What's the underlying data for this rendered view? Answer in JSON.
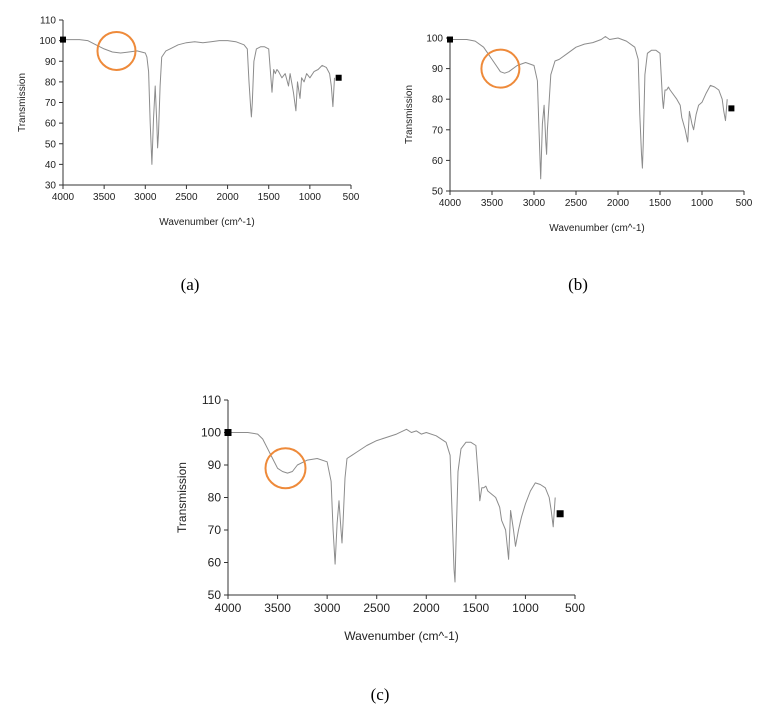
{
  "figure": {
    "panel_labels": [
      "(a)",
      "(b)",
      "(c)"
    ]
  },
  "colors": {
    "spectrum_line": "#8c8c8c",
    "axis": "#333333",
    "highlight_circle": "#ee8a3a",
    "marker": "#000000"
  },
  "chart_data": [
    {
      "type": "line",
      "panel": "(a)",
      "xlabel": "Wavenumber (cm^-1)",
      "ylabel": "Transmission",
      "xlim": [
        4000,
        500
      ],
      "x_reversed": true,
      "ylim": [
        30,
        110
      ],
      "xticks": [
        4000,
        3500,
        3000,
        2500,
        2000,
        1500,
        1000,
        500
      ],
      "yticks": [
        30,
        40,
        50,
        60,
        70,
        80,
        90,
        100,
        110
      ],
      "grid": false,
      "markers": [
        {
          "x": 4000,
          "y": 100.5
        },
        {
          "x": 650,
          "y": 82
        }
      ],
      "highlight": {
        "x": 3350,
        "y": 95
      },
      "series": [
        {
          "x": [
            4000,
            3800,
            3700,
            3600,
            3500,
            3400,
            3300,
            3200,
            3100,
            3000,
            2980,
            2960,
            2940,
            2920,
            2900,
            2880,
            2860,
            2850,
            2840,
            2820,
            2800,
            2750,
            2700,
            2600,
            2500,
            2400,
            2300,
            2200,
            2100,
            2000,
            1900,
            1800,
            1760,
            1740,
            1720,
            1710,
            1700,
            1680,
            1650,
            1600,
            1550,
            1500,
            1470,
            1460,
            1440,
            1420,
            1400,
            1380,
            1340,
            1300,
            1260,
            1240,
            1200,
            1170,
            1150,
            1120,
            1100,
            1070,
            1040,
            1000,
            950,
            900,
            850,
            800,
            760,
            740,
            720,
            700
          ],
          "y": [
            100.5,
            100.5,
            100,
            98,
            96,
            94.5,
            94,
            94.5,
            95,
            94,
            92,
            85,
            60,
            40,
            62,
            78,
            60,
            48,
            55,
            78,
            92,
            95,
            96,
            98,
            99,
            99.5,
            99,
            99.5,
            100,
            100,
            99.5,
            98,
            96,
            80,
            68,
            63,
            70,
            90,
            96,
            97,
            97,
            96,
            80,
            75,
            86,
            84,
            86,
            85,
            82,
            84,
            78,
            84,
            75,
            66,
            80,
            72,
            82,
            80,
            84,
            82,
            85,
            86,
            88,
            87,
            84,
            78,
            68,
            82
          ]
        }
      ]
    },
    {
      "type": "line",
      "panel": "(b)",
      "xlabel": "Wavenumber (cm^-1)",
      "ylabel": "Transmission",
      "xlim": [
        4000,
        500
      ],
      "x_reversed": true,
      "ylim": [
        50,
        100
      ],
      "xticks": [
        4000,
        3500,
        3000,
        2500,
        2000,
        1500,
        1000,
        500
      ],
      "yticks": [
        50,
        60,
        70,
        80,
        90,
        100
      ],
      "grid": false,
      "markers": [
        {
          "x": 4000,
          "y": 99.5
        },
        {
          "x": 650,
          "y": 77
        }
      ],
      "highlight": {
        "x": 3400,
        "y": 90
      },
      "series": [
        {
          "x": [
            4000,
            3800,
            3700,
            3600,
            3500,
            3450,
            3400,
            3350,
            3300,
            3200,
            3100,
            3000,
            2960,
            2940,
            2920,
            2900,
            2880,
            2860,
            2850,
            2840,
            2800,
            2750,
            2700,
            2600,
            2500,
            2400,
            2300,
            2200,
            2150,
            2100,
            2000,
            1900,
            1800,
            1760,
            1740,
            1720,
            1710,
            1700,
            1680,
            1650,
            1600,
            1550,
            1500,
            1470,
            1460,
            1440,
            1420,
            1400,
            1380,
            1300,
            1260,
            1240,
            1200,
            1170,
            1150,
            1120,
            1100,
            1070,
            1040,
            1000,
            950,
            900,
            850,
            800,
            760,
            740,
            720,
            700
          ],
          "y": [
            99.5,
            99.5,
            99,
            97,
            93,
            91,
            89,
            88.5,
            89,
            91,
            92,
            91,
            86,
            70,
            54,
            72,
            78,
            66,
            62,
            70,
            88,
            92.5,
            93,
            95,
            97,
            98,
            98.5,
            99.5,
            100.5,
            99.5,
            100,
            99,
            97,
            93,
            75,
            62,
            57.5,
            65,
            88,
            95,
            96,
            96,
            95,
            80,
            77,
            83,
            83,
            84,
            83,
            80,
            78,
            74,
            70,
            66,
            76,
            72,
            70,
            75,
            78,
            79,
            82,
            84.5,
            84,
            83,
            80,
            76,
            73,
            80
          ]
        }
      ]
    },
    {
      "type": "line",
      "panel": "(c)",
      "xlabel": "Wavenumber (cm^-1)",
      "ylabel": "Transmission",
      "xlim": [
        4000,
        500
      ],
      "x_reversed": true,
      "ylim": [
        50,
        110
      ],
      "xticks": [
        4000,
        3500,
        3000,
        2500,
        2000,
        1500,
        1000,
        500
      ],
      "yticks": [
        50,
        60,
        70,
        80,
        90,
        100,
        110
      ],
      "grid": false,
      "markers": [
        {
          "x": 4000,
          "y": 100
        },
        {
          "x": 650,
          "y": 75
        }
      ],
      "highlight": {
        "x": 3420,
        "y": 89
      },
      "series": [
        {
          "x": [
            4000,
            3800,
            3700,
            3650,
            3600,
            3550,
            3500,
            3450,
            3400,
            3350,
            3300,
            3200,
            3100,
            3000,
            2960,
            2940,
            2920,
            2900,
            2880,
            2860,
            2850,
            2840,
            2820,
            2800,
            2750,
            2700,
            2600,
            2500,
            2400,
            2300,
            2200,
            2150,
            2100,
            2050,
            2000,
            1900,
            1800,
            1760,
            1740,
            1720,
            1710,
            1700,
            1680,
            1650,
            1600,
            1550,
            1500,
            1470,
            1460,
            1440,
            1420,
            1400,
            1380,
            1300,
            1260,
            1240,
            1200,
            1170,
            1150,
            1120,
            1100,
            1070,
            1040,
            1000,
            950,
            900,
            850,
            800,
            760,
            740,
            720,
            700
          ],
          "y": [
            100,
            100,
            99.5,
            98,
            95,
            92,
            89,
            88,
            87.5,
            88,
            90,
            91.5,
            92,
            91,
            85,
            70,
            59.5,
            72,
            79,
            70,
            66,
            72,
            86,
            92,
            93,
            94,
            96,
            97.5,
            98.5,
            99.5,
            101,
            100,
            100.5,
            99.5,
            100,
            99,
            97,
            93,
            75,
            58,
            54,
            66,
            88,
            95,
            97,
            97,
            96,
            84,
            79,
            83,
            83,
            83.5,
            82,
            80,
            77,
            73,
            70,
            61,
            76,
            70,
            65,
            70,
            74,
            78,
            82,
            84.5,
            84,
            83,
            80,
            76,
            71,
            80
          ]
        }
      ]
    }
  ]
}
